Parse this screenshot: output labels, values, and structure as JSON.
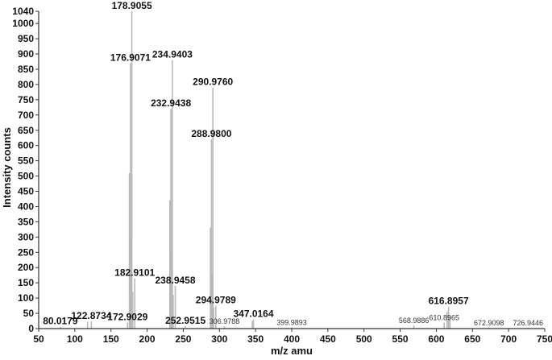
{
  "chart_data": {
    "type": "bar",
    "title": "",
    "xlabel": "m/z amu",
    "ylabel": "Intensity counts",
    "xlim": [
      50,
      750
    ],
    "ylim": [
      0,
      1040
    ],
    "grid": false,
    "xticks": [
      50,
      100,
      150,
      200,
      250,
      300,
      350,
      400,
      450,
      500,
      550,
      600,
      650,
      700,
      750
    ],
    "yticks": [
      0,
      50,
      100,
      150,
      200,
      250,
      300,
      350,
      400,
      450,
      500,
      550,
      600,
      650,
      700,
      750,
      800,
      850,
      900,
      950,
      1000,
      1040
    ],
    "peak_color": "#b8b8b8",
    "peaks": [
      {
        "mz": 80.0179,
        "intensity": 6
      },
      {
        "mz": 117.5,
        "intensity": 22
      },
      {
        "mz": 122.8734,
        "intensity": 24
      },
      {
        "mz": 172.9029,
        "intensity": 20
      },
      {
        "mz": 175.5,
        "intensity": 510
      },
      {
        "mz": 176.9071,
        "intensity": 870
      },
      {
        "mz": 177.8,
        "intensity": 300
      },
      {
        "mz": 178.9055,
        "intensity": 1040
      },
      {
        "mz": 180.0,
        "intensity": 120
      },
      {
        "mz": 182.9101,
        "intensity": 165
      },
      {
        "mz": 231.5,
        "intensity": 420
      },
      {
        "mz": 232.9438,
        "intensity": 720
      },
      {
        "mz": 233.8,
        "intensity": 250
      },
      {
        "mz": 234.9403,
        "intensity": 880
      },
      {
        "mz": 236.0,
        "intensity": 110
      },
      {
        "mz": 238.9458,
        "intensity": 140
      },
      {
        "mz": 252.9515,
        "intensity": 8
      },
      {
        "mz": 287.5,
        "intensity": 330
      },
      {
        "mz": 288.98,
        "intensity": 620
      },
      {
        "mz": 289.8,
        "intensity": 180
      },
      {
        "mz": 290.976,
        "intensity": 790
      },
      {
        "mz": 292.0,
        "intensity": 70
      },
      {
        "mz": 294.9789,
        "intensity": 75
      },
      {
        "mz": 306.9788,
        "intensity": 8
      },
      {
        "mz": 345.5,
        "intensity": 25
      },
      {
        "mz": 347.0164,
        "intensity": 30
      },
      {
        "mz": 399.9893,
        "intensity": 4
      },
      {
        "mz": 568.9886,
        "intensity": 10
      },
      {
        "mz": 610.8965,
        "intensity": 20
      },
      {
        "mz": 614.9,
        "intensity": 55
      },
      {
        "mz": 616.8957,
        "intensity": 72
      },
      {
        "mz": 618.9,
        "intensity": 40
      },
      {
        "mz": 672.9098,
        "intensity": 3
      },
      {
        "mz": 726.9446,
        "intensity": 3
      }
    ],
    "annotations": [
      {
        "text": "178.9055",
        "mz": 178.9055,
        "intensity": 1040,
        "style": "big"
      },
      {
        "text": "176.9071",
        "mz": 176.9071,
        "intensity": 870,
        "style": "big"
      },
      {
        "text": "234.9403",
        "mz": 234.9403,
        "intensity": 880,
        "style": "big"
      },
      {
        "text": "232.9438",
        "mz": 232.9438,
        "intensity": 720,
        "style": "big"
      },
      {
        "text": "290.9760",
        "mz": 290.976,
        "intensity": 790,
        "style": "big"
      },
      {
        "text": "288.9800",
        "mz": 288.98,
        "intensity": 620,
        "style": "big"
      },
      {
        "text": "182.9101",
        "mz": 182.9101,
        "intensity": 165,
        "style": "big"
      },
      {
        "text": "238.9458",
        "mz": 238.9458,
        "intensity": 140,
        "style": "big"
      },
      {
        "text": "294.9789",
        "mz": 294.9789,
        "intensity": 75,
        "style": "big"
      },
      {
        "text": "347.0164",
        "mz": 347.0164,
        "intensity": 30,
        "style": "big"
      },
      {
        "text": "122.8734",
        "mz": 122.8734,
        "intensity": 24,
        "style": "big"
      },
      {
        "text": "80.0179",
        "mz": 80.0179,
        "intensity": 6,
        "style": "big"
      },
      {
        "text": "172.9029",
        "mz": 172.9029,
        "intensity": 20,
        "style": "big"
      },
      {
        "text": "252.9515",
        "mz": 252.9515,
        "intensity": 8,
        "style": "big"
      },
      {
        "text": "616.8957",
        "mz": 616.8957,
        "intensity": 72,
        "style": "big"
      },
      {
        "text": "306.9788",
        "mz": 306.9788,
        "intensity": 8,
        "style": "small"
      },
      {
        "text": "399.9893",
        "mz": 399.9893,
        "intensity": 4,
        "style": "small"
      },
      {
        "text": "568.9886",
        "mz": 568.9886,
        "intensity": 10,
        "style": "small"
      },
      {
        "text": "610.8965",
        "mz": 610.8965,
        "intensity": 20,
        "style": "small"
      },
      {
        "text": "672.9098",
        "mz": 672.9098,
        "intensity": 3,
        "style": "small"
      },
      {
        "text": "726.9446",
        "mz": 726.9446,
        "intensity": 3,
        "style": "small"
      }
    ]
  }
}
